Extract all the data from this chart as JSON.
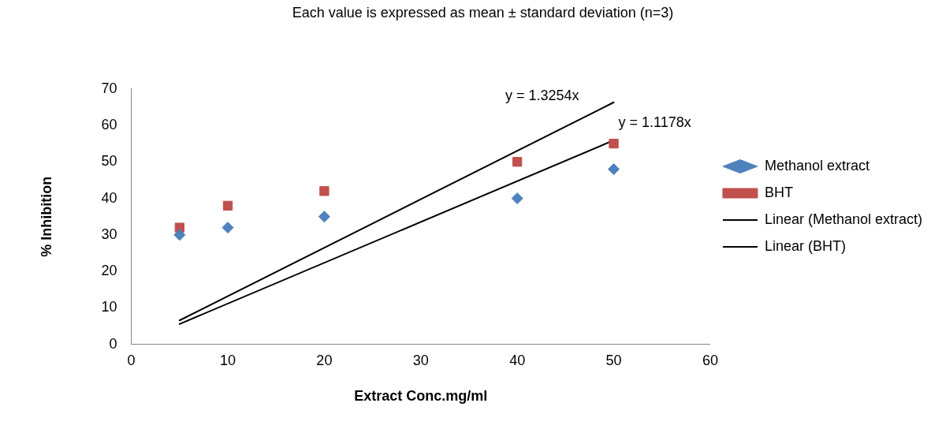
{
  "chart_data": {
    "type": "scatter",
    "title": "Each value is expressed as mean ± standard deviation (n=3)",
    "xlabel": "Extract Conc.mg/ml",
    "ylabel": "% Inhibition",
    "xlim": [
      0,
      60
    ],
    "xticks": [
      0,
      10,
      20,
      30,
      40,
      50,
      60
    ],
    "ylim": [
      0,
      70
    ],
    "yticks": [
      0,
      10,
      20,
      30,
      40,
      50,
      60,
      70
    ],
    "grid": false,
    "legend": "right",
    "series": [
      {
        "name": "Methanol extract",
        "type": "scatter",
        "marker": "diamond",
        "color": "#4f81bd",
        "x": [
          5,
          10,
          20,
          40,
          50
        ],
        "values": [
          30,
          32,
          35,
          40,
          48
        ]
      },
      {
        "name": "BHT",
        "type": "scatter",
        "marker": "square",
        "color": "#c0504d",
        "x": [
          5,
          10,
          20,
          40,
          50
        ],
        "values": [
          32,
          38,
          42,
          50,
          55
        ]
      },
      {
        "name": "Linear (Methanol extract)",
        "type": "line",
        "marker": "none",
        "color": "#000000",
        "x": [
          5,
          50
        ],
        "values": [
          5.6,
          55.9
        ]
      },
      {
        "name": "Linear (BHT)",
        "type": "line",
        "marker": "none",
        "color": "#000000",
        "x": [
          5,
          50
        ],
        "values": [
          6.6,
          66.3
        ]
      }
    ],
    "annotations": [
      {
        "text": "y = 1.3254x",
        "x": 50,
        "y": 66.3
      },
      {
        "text": "y = 1.1178x",
        "x": 50,
        "y": 55.9
      }
    ]
  }
}
